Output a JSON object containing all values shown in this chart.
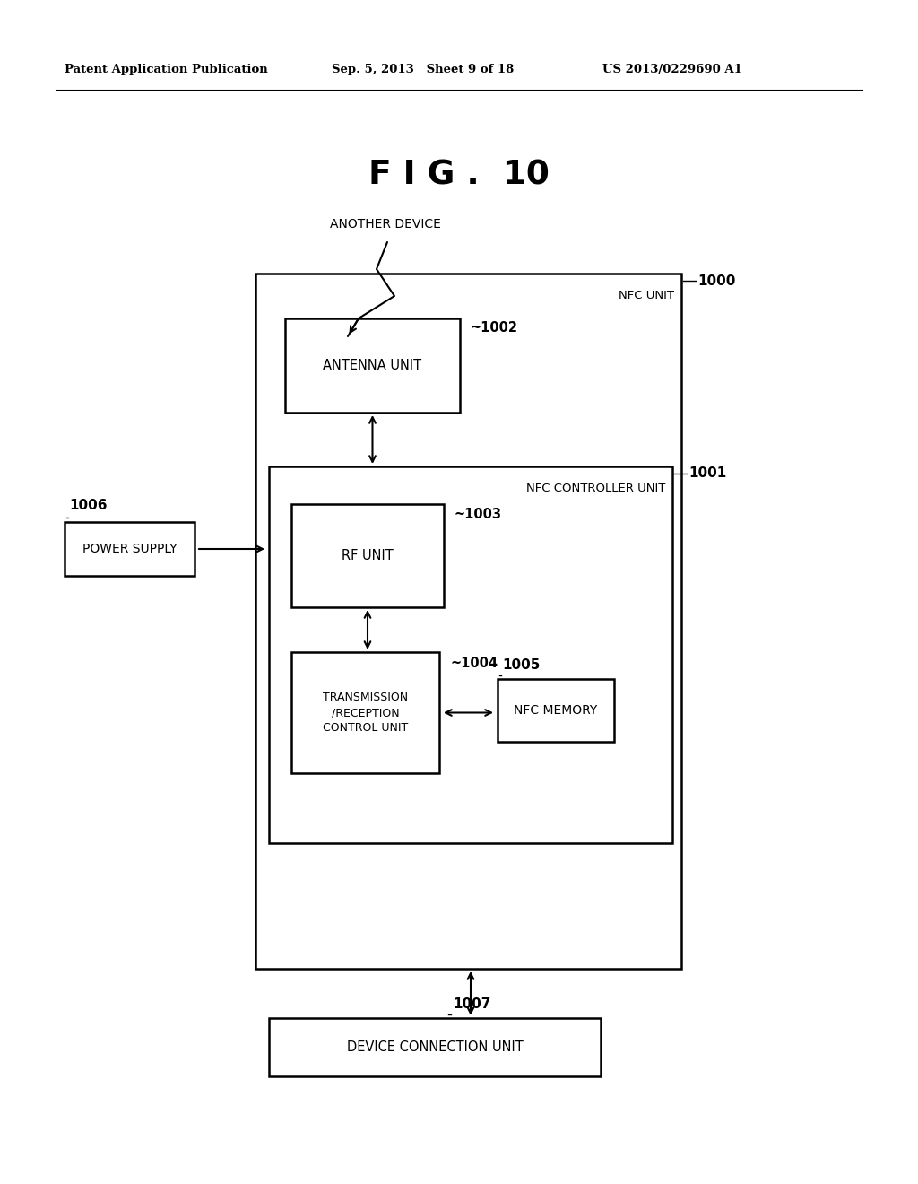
{
  "bg_color": "#ffffff",
  "header_left": "Patent Application Publication",
  "header_mid": "Sep. 5, 2013   Sheet 9 of 18",
  "header_right": "US 2013/0229690 A1",
  "fig_title": "F I G .  10",
  "nfc_unit_label": "NFC UNIT",
  "nfc_unit_ref": "1000",
  "nfc_controller_label": "NFC CONTROLLER UNIT",
  "nfc_controller_ref": "1001",
  "antenna_label": "ANTENNA UNIT",
  "antenna_ref": "~1002",
  "rf_label": "RF UNIT",
  "rf_ref": "~1003",
  "tx_label": "TRANSMISSION\n/RECEPTION\nCONTROL UNIT",
  "tx_ref": "~1004",
  "nfc_mem_label": "NFC MEMORY",
  "nfc_mem_ref": "1005",
  "power_label": "POWER SUPPLY",
  "power_ref": "1006",
  "dev_conn_label": "DEVICE CONNECTION UNIT",
  "dev_conn_ref": "1007",
  "another_device_label": "ANOTHER DEVICE"
}
